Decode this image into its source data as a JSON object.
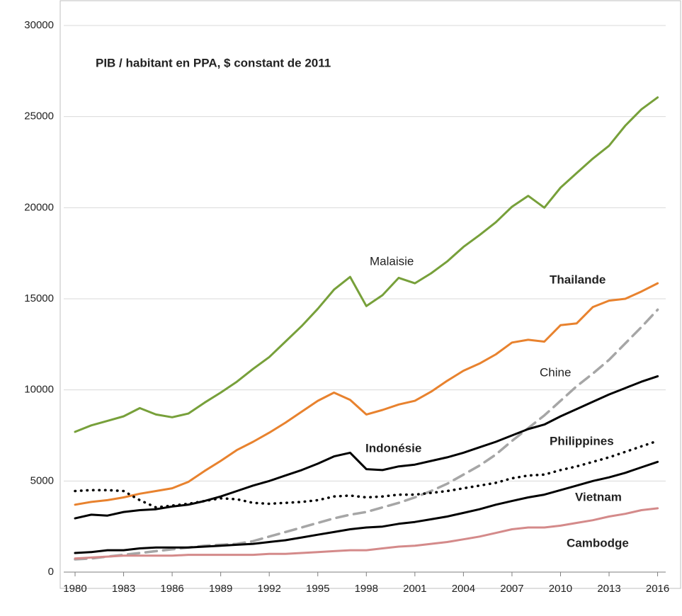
{
  "chart_data": {
    "type": "line",
    "title": "PIB / habitant en PPA, $ constant de 2011",
    "x": [
      1980,
      1981,
      1982,
      1983,
      1984,
      1985,
      1986,
      1987,
      1988,
      1989,
      1990,
      1991,
      1992,
      1993,
      1994,
      1995,
      1996,
      1997,
      1998,
      1999,
      2000,
      2001,
      2002,
      2003,
      2004,
      2005,
      2006,
      2007,
      2008,
      2009,
      2010,
      2011,
      2012,
      2013,
      2014,
      2015,
      2016
    ],
    "series": [
      {
        "name": "Malaisie",
        "color": "#77a03a",
        "dash": "solid",
        "values": [
          7700,
          8050,
          8300,
          8550,
          9000,
          8650,
          8500,
          8700,
          9300,
          9850,
          10450,
          11150,
          11800,
          12650,
          13500,
          14450,
          15500,
          16200,
          14600,
          15200,
          16150,
          15850,
          16400,
          17050,
          17850,
          18500,
          19200,
          20050,
          20650,
          20000,
          21100,
          21900,
          22700,
          23400,
          24500,
          25400,
          26050
        ]
      },
      {
        "name": "Thailande",
        "color": "#e8822e",
        "dash": "solid",
        "values": [
          3700,
          3850,
          3950,
          4100,
          4300,
          4450,
          4600,
          4950,
          5550,
          6100,
          6700,
          7150,
          7650,
          8200,
          8800,
          9400,
          9850,
          9450,
          8650,
          8900,
          9200,
          9400,
          9900,
          10500,
          11050,
          11450,
          11950,
          12600,
          12750,
          12650,
          13550,
          13650,
          14550,
          14900,
          15000,
          15400,
          15850
        ]
      },
      {
        "name": "Chine",
        "color": "#a6a6a6",
        "dash": "dashed",
        "values": [
          700,
          750,
          850,
          950,
          1050,
          1150,
          1250,
          1350,
          1450,
          1500,
          1550,
          1700,
          1950,
          2200,
          2450,
          2700,
          2950,
          3150,
          3300,
          3550,
          3800,
          4100,
          4450,
          4850,
          5350,
          5850,
          6450,
          7200,
          7900,
          8600,
          9400,
          10200,
          10900,
          11650,
          12550,
          13450,
          14400
        ]
      },
      {
        "name": "Indonésie",
        "color": "#000000",
        "dash": "solid",
        "values": [
          2950,
          3150,
          3100,
          3300,
          3400,
          3450,
          3600,
          3700,
          3900,
          4150,
          4450,
          4750,
          5000,
          5300,
          5600,
          5950,
          6350,
          6550,
          5650,
          5600,
          5800,
          5900,
          6100,
          6300,
          6550,
          6850,
          7150,
          7500,
          7850,
          8100,
          8550,
          8950,
          9350,
          9750,
          10100,
          10450,
          10750
        ]
      },
      {
        "name": "Philippines",
        "color": "#000000",
        "dash": "dotted",
        "values": [
          4450,
          4500,
          4500,
          4450,
          3950,
          3550,
          3650,
          3750,
          3900,
          4050,
          4000,
          3800,
          3750,
          3800,
          3850,
          3950,
          4150,
          4200,
          4100,
          4150,
          4250,
          4250,
          4350,
          4450,
          4600,
          4750,
          4900,
          5150,
          5300,
          5350,
          5600,
          5800,
          6050,
          6300,
          6600,
          6900,
          7200
        ]
      },
      {
        "name": "Vietnam",
        "color": "#000000",
        "dash": "solid",
        "values": [
          1050,
          1100,
          1200,
          1200,
          1300,
          1350,
          1350,
          1350,
          1400,
          1450,
          1500,
          1550,
          1650,
          1750,
          1900,
          2050,
          2200,
          2350,
          2450,
          2500,
          2650,
          2750,
          2900,
          3050,
          3250,
          3450,
          3700,
          3900,
          4100,
          4250,
          4500,
          4750,
          5000,
          5200,
          5450,
          5750,
          6050
        ]
      },
      {
        "name": "Cambodge",
        "color": "#d48a8a",
        "dash": "solid",
        "values": [
          750,
          800,
          850,
          900,
          900,
          900,
          900,
          950,
          950,
          950,
          950,
          950,
          1000,
          1000,
          1050,
          1100,
          1150,
          1200,
          1200,
          1300,
          1400,
          1450,
          1550,
          1650,
          1800,
          1950,
          2150,
          2350,
          2450,
          2450,
          2550,
          2700,
          2850,
          3050,
          3200,
          3400,
          3500
        ]
      }
    ],
    "xlim": [
      1979.3,
      2016.5
    ],
    "xticks": [
      1980,
      1983,
      1986,
      1989,
      1992,
      1995,
      1998,
      2001,
      2004,
      2007,
      2010,
      2013,
      2016
    ],
    "ylim": [
      0,
      30000
    ],
    "yticks": [
      0,
      5000,
      10000,
      15000,
      20000,
      25000,
      30000
    ],
    "grid": true
  }
}
